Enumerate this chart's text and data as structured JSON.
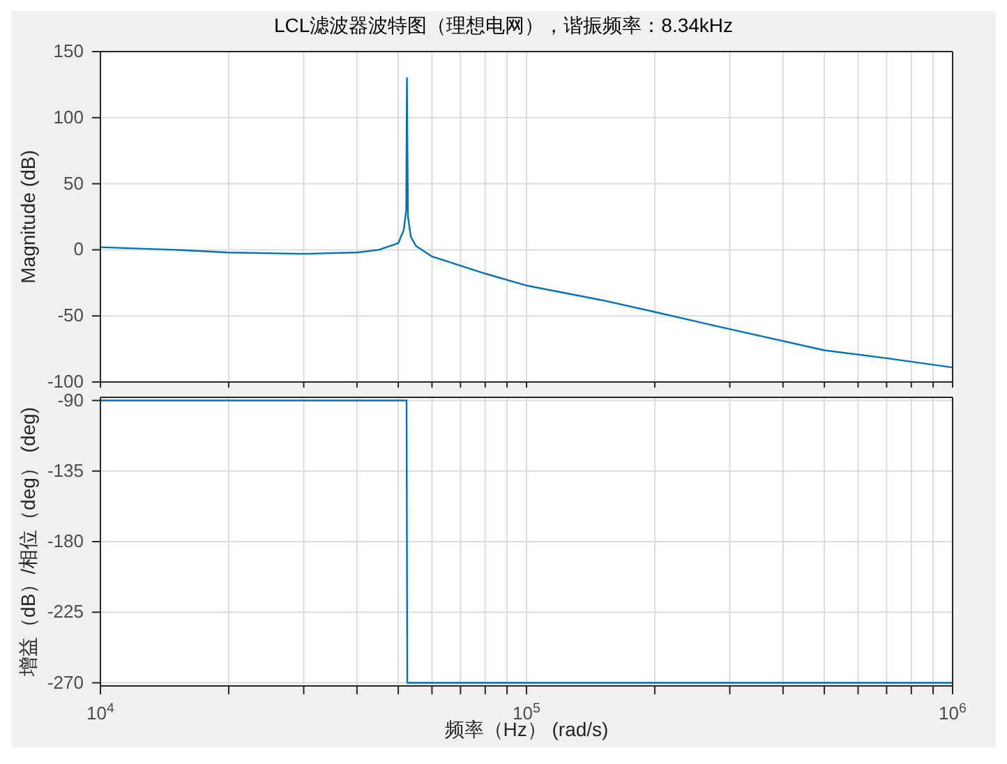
{
  "chart_data": [
    {
      "type": "line",
      "title": "LCL滤波器波特图（理想电网），谐振频率：8.34kHz",
      "ylabel": "Magnitude (dB)",
      "xlim": [
        10000,
        1000000
      ],
      "log": "x",
      "tick_labels": "y",
      "grid": true,
      "marker": "none",
      "line_style": "solid",
      "xticks": [
        {
          "value": 10000,
          "label": null
        },
        {
          "value": 20000,
          "label": null
        },
        {
          "value": 30000,
          "label": null
        },
        {
          "value": 40000,
          "label": null
        },
        {
          "value": 50000,
          "label": null
        },
        {
          "value": 60000,
          "label": null
        },
        {
          "value": 70000,
          "label": null
        },
        {
          "value": 80000,
          "label": null
        },
        {
          "value": 90000,
          "label": null
        },
        {
          "value": 100000,
          "label": null
        },
        {
          "value": 200000,
          "label": null
        },
        {
          "value": 300000,
          "label": null
        },
        {
          "value": 400000,
          "label": null
        },
        {
          "value": 500000,
          "label": null
        },
        {
          "value": 600000,
          "label": null
        },
        {
          "value": 700000,
          "label": null
        },
        {
          "value": 800000,
          "label": null
        },
        {
          "value": 900000,
          "label": null
        },
        {
          "value": 1000000,
          "label": null
        }
      ],
      "ylim": [
        -100,
        150
      ],
      "yticks": [
        -100,
        -50,
        0,
        50,
        100,
        150
      ],
      "series": [
        {
          "color": "#0072bd",
          "x": [
            10000,
            15000,
            20000,
            30000,
            40000,
            45000,
            50000,
            51500,
            52200,
            52400,
            52700,
            53500,
            55000,
            60000,
            70000,
            80000,
            100000,
            150000,
            200000,
            300000,
            500000,
            700000,
            1000000
          ],
          "values": [
            2,
            0,
            -2,
            -3,
            -2,
            0,
            5,
            15,
            30,
            130,
            25,
            10,
            3,
            -5,
            -12,
            -18,
            -27,
            -38,
            -47,
            -60,
            -76,
            -82,
            -89
          ]
        }
      ]
    },
    {
      "type": "line",
      "xlabel": "频率（Hz）  (rad/s)",
      "ylabel": "增益（dB）/相位（deg）  (deg)",
      "xlim": [
        10000,
        1000000
      ],
      "log": "x",
      "grid": true,
      "marker": "none",
      "line_style": "solid",
      "xticks": [
        {
          "value": 10000,
          "label": "10$^{4}$"
        },
        {
          "value": 20000,
          "label": null
        },
        {
          "value": 30000,
          "label": null
        },
        {
          "value": 40000,
          "label": null
        },
        {
          "value": 50000,
          "label": null
        },
        {
          "value": 60000,
          "label": null
        },
        {
          "value": 70000,
          "label": null
        },
        {
          "value": 80000,
          "label": null
        },
        {
          "value": 90000,
          "label": null
        },
        {
          "value": 100000,
          "label": "10$^{5}$"
        },
        {
          "value": 200000,
          "label": null
        },
        {
          "value": 300000,
          "label": null
        },
        {
          "value": 400000,
          "label": null
        },
        {
          "value": 500000,
          "label": null
        },
        {
          "value": 600000,
          "label": null
        },
        {
          "value": 700000,
          "label": null
        },
        {
          "value": 800000,
          "label": null
        },
        {
          "value": 900000,
          "label": null
        },
        {
          "value": 1000000,
          "label": "10$^{6}$"
        }
      ],
      "ylim": [
        -272,
        -88
      ],
      "yticks": [
        -270,
        -225,
        -180,
        -135,
        -90
      ],
      "series": [
        {
          "color": "#0072bd",
          "x": [
            10000,
            52300,
            52500,
            1000000
          ],
          "values": [
            -90,
            -90,
            -270,
            -270
          ]
        }
      ]
    }
  ]
}
